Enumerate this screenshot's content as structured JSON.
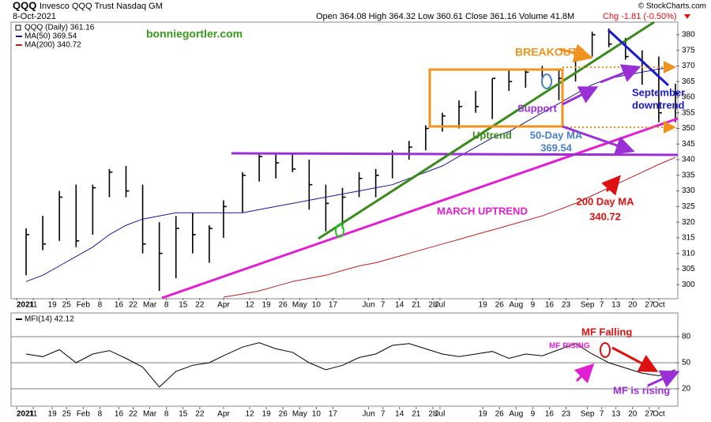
{
  "header": {
    "symbol": "QQQ",
    "name": "Invesco QQQ Trust Nasdaq GM",
    "date": "8-Oct-2021",
    "quote": "Open 364.08 High 364.32 Low 360.61 Close 361.16 Volume 41.8M",
    "change": "Chg -1.81 (-0.50%)",
    "source": "© StockCharts.com"
  },
  "chart_data": [
    {
      "type": "ohlc",
      "x": [
        "2021-01-08",
        "2021-01-15",
        "2021-01-22",
        "2021-01-29",
        "2021-02-05",
        "2021-02-12",
        "2021-02-19",
        "2021-02-26",
        "2021-03-05",
        "2021-03-12",
        "2021-03-19",
        "2021-03-26",
        "2021-04-01",
        "2021-04-09",
        "2021-04-16",
        "2021-04-23",
        "2021-04-30",
        "2021-05-07",
        "2021-05-14",
        "2021-05-21",
        "2021-05-28",
        "2021-06-04",
        "2021-06-11",
        "2021-06-18",
        "2021-06-25",
        "2021-07-02",
        "2021-07-09",
        "2021-07-16",
        "2021-07-23",
        "2021-07-30",
        "2021-08-06",
        "2021-08-13",
        "2021-08-20",
        "2021-08-27",
        "2021-09-03",
        "2021-09-10",
        "2021-09-17",
        "2021-09-24",
        "2021-10-01",
        "2021-10-08"
      ],
      "series": [
        {
          "name": "QQQ (Daily) 361.16",
          "color": "#000000",
          "high": [
            318,
            322,
            330,
            332,
            332,
            337,
            338,
            332,
            320,
            322,
            323,
            319,
            327,
            336,
            342,
            342,
            342,
            340,
            332,
            331,
            336,
            337,
            343,
            346,
            351,
            355,
            359,
            362,
            366,
            369,
            369,
            370,
            369,
            374,
            381,
            382,
            379,
            375,
            373,
            364.32
          ],
          "low": [
            303,
            311,
            314,
            312,
            316,
            328,
            328,
            310,
            298,
            302,
            310,
            307,
            315,
            323,
            333,
            334,
            336,
            324,
            317,
            318,
            328,
            328,
            334,
            340,
            343,
            349,
            350,
            355,
            353,
            362,
            363,
            366,
            359,
            365,
            373,
            376,
            372,
            364,
            352,
            352
          ],
          "close": [
            316,
            313,
            328,
            314,
            331,
            336,
            330,
            313,
            310,
            318,
            316,
            318,
            325,
            335,
            341,
            339,
            337,
            332,
            326,
            328,
            334,
            335,
            342,
            344,
            350,
            354,
            357,
            357,
            366,
            365,
            368,
            369,
            366,
            373,
            380,
            377,
            373,
            371,
            355,
            361.16
          ]
        },
        {
          "name": "MA(50) 369.54",
          "color": "#1a1a8c",
          "values": [
            301,
            303,
            306,
            309,
            312,
            316,
            319,
            321,
            322,
            323,
            323,
            323,
            323,
            323,
            324,
            325,
            326,
            327,
            328,
            329,
            330,
            331,
            332,
            334,
            336,
            338,
            341,
            344,
            347,
            349,
            352,
            355,
            358,
            361,
            364,
            366,
            367,
            368,
            369,
            369.54
          ]
        },
        {
          "name": "MA(200) 340.72",
          "color": "#b22222",
          "values": [
            null,
            null,
            null,
            null,
            null,
            null,
            null,
            null,
            null,
            null,
            null,
            null,
            296,
            297,
            298,
            299.5,
            301,
            302,
            303,
            304.5,
            306,
            307,
            308.5,
            310,
            311.5,
            313,
            314.5,
            316,
            317.5,
            319,
            320.5,
            322,
            324,
            326,
            328.5,
            331,
            333.5,
            336,
            338.5,
            340.72
          ]
        }
      ],
      "xlim": [
        "2021-01-03",
        "2021-10-09"
      ],
      "xticks": [
        {
          "value": "2021-01-04",
          "label": "2021"
        },
        {
          "value": "2021-01-11",
          "label": "11"
        },
        {
          "value": "2021-01-19",
          "label": "19"
        },
        {
          "value": "2021-01-25",
          "label": "25"
        },
        {
          "value": "2021-02-01",
          "label": "Feb"
        },
        {
          "value": "2021-02-08",
          "label": "8"
        },
        {
          "value": "2021-02-16",
          "label": "16"
        },
        {
          "value": "2021-02-22",
          "label": "22"
        },
        {
          "value": "2021-03-01",
          "label": "Mar"
        },
        {
          "value": "2021-03-08",
          "label": "8"
        },
        {
          "value": "2021-03-15",
          "label": "15"
        },
        {
          "value": "2021-03-22",
          "label": "22"
        },
        {
          "value": "2021-04-01",
          "label": "Apr"
        },
        {
          "value": "2021-04-12",
          "label": "12"
        },
        {
          "value": "2021-04-19",
          "label": "19"
        },
        {
          "value": "2021-04-26",
          "label": "26"
        },
        {
          "value": "2021-05-03",
          "label": "May"
        },
        {
          "value": "2021-05-10",
          "label": "10"
        },
        {
          "value": "2021-05-17",
          "label": "17"
        },
        {
          "value": "2021-06-01",
          "label": "Jun"
        },
        {
          "value": "2021-06-07",
          "label": "7"
        },
        {
          "value": "2021-06-14",
          "label": "14"
        },
        {
          "value": "2021-06-21",
          "label": "21"
        },
        {
          "value": "2021-06-28",
          "label": "28"
        },
        {
          "value": "2021-07-01",
          "label": "Jul"
        },
        {
          "value": "2021-07-19",
          "label": "19"
        },
        {
          "value": "2021-07-26",
          "label": "26"
        },
        {
          "value": "2021-08-02",
          "label": "Aug"
        },
        {
          "value": "2021-08-09",
          "label": "9"
        },
        {
          "value": "2021-08-16",
          "label": "16"
        },
        {
          "value": "2021-08-23",
          "label": "23"
        },
        {
          "value": "2021-09-01",
          "label": "Sep"
        },
        {
          "value": "2021-09-07",
          "label": "7"
        },
        {
          "value": "2021-09-13",
          "label": "13"
        },
        {
          "value": "2021-09-20",
          "label": "20"
        },
        {
          "value": "2021-09-27",
          "label": "27"
        },
        {
          "value": "2021-10-01",
          "label": "Oct"
        }
      ],
      "ylim": [
        296,
        382
      ],
      "yticks": [
        300,
        305,
        310,
        315,
        320,
        325,
        330,
        335,
        340,
        345,
        350,
        355,
        360,
        365,
        370,
        375,
        380
      ],
      "grid": false,
      "annotations": [
        {
          "text": "bonniegortler.com",
          "color": "#3a9a1e"
        },
        {
          "text": "BREAKOUT?",
          "color": "#f0921e"
        },
        {
          "lines": [
            "September",
            "downtrend"
          ],
          "color": "#1a1acc"
        },
        {
          "text": "Support",
          "color": "#9b2fd6"
        },
        {
          "text": "Uptrend",
          "color": "#3a8a1e"
        },
        {
          "lines": [
            "50-Day MA",
            "369.54"
          ],
          "color": "#4a7fc1"
        },
        {
          "lines": [
            "200 Day MA",
            "340.72"
          ],
          "color": "#dd1111"
        },
        {
          "text": "MARCH UPTREND",
          "color": "#e020d0"
        }
      ]
    },
    {
      "type": "line",
      "series": [
        {
          "name": "MFI(14) 42.12",
          "color": "#000000",
          "values": [
            60,
            57,
            65,
            50,
            60,
            64,
            55,
            45,
            22,
            40,
            47,
            50,
            58,
            68,
            73,
            66,
            62,
            50,
            42,
            47,
            56,
            60,
            70,
            72,
            66,
            60,
            57,
            60,
            63,
            55,
            60,
            58,
            65,
            72,
            60,
            50,
            44,
            38,
            35,
            42.12
          ]
        }
      ],
      "ylim": [
        0,
        100
      ],
      "yticks": [
        20,
        50,
        80
      ],
      "grid": true,
      "annotations": [
        {
          "text": "MF Falling",
          "color": "#dd1111"
        },
        {
          "text": "MF RISING",
          "color": "#e020d0"
        },
        {
          "text": "MF is rising",
          "color": "#9b2fd6"
        }
      ]
    }
  ]
}
